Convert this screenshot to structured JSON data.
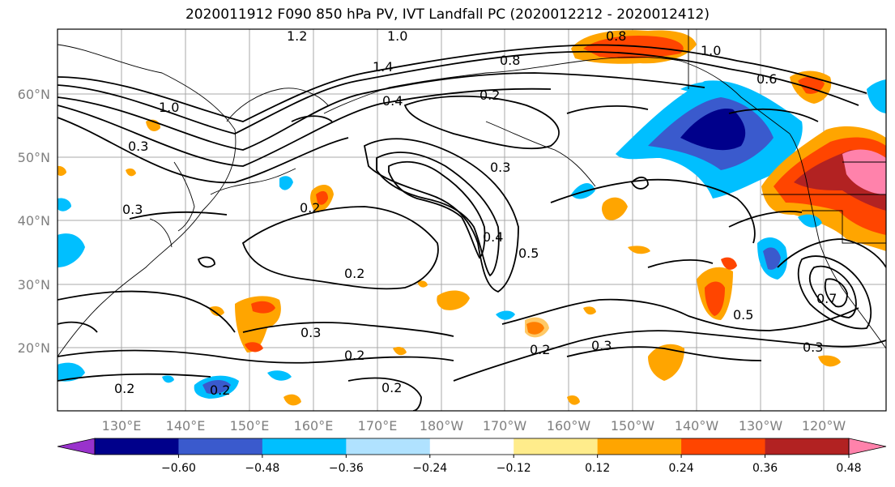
{
  "title": "2020011912 F090 850 hPa PV, IVT Landfall PC (2020012212 - 2020012412)",
  "lat_labels": [
    "60°N",
    "50°N",
    "40°N",
    "30°N",
    "20°N"
  ],
  "lon_labels": [
    "130°E",
    "140°E",
    "150°E",
    "160°E",
    "170°E",
    "180°W",
    "170°W",
    "160°W",
    "150°W",
    "140°W",
    "130°W",
    "120°W"
  ],
  "colorbar": {
    "ticks": [
      "−0.60",
      "−0.48",
      "−0.36",
      "−0.24",
      "−0.12",
      "0.12",
      "0.24",
      "0.36",
      "0.48",
      "0.60"
    ],
    "colors": [
      "#9932cc",
      "#00008b",
      "#3a5acd",
      "#00bfff",
      "#b0e2ff",
      "#ffffff",
      "#ffec8b",
      "#ffa500",
      "#ff4500",
      "#b22222",
      "#ff82ab"
    ]
  },
  "contour_labels": [
    {
      "text": "1.2"
    },
    {
      "text": "1.0"
    },
    {
      "text": "1.0"
    },
    {
      "text": "1.0"
    },
    {
      "text": "1.4"
    },
    {
      "text": "0.8"
    },
    {
      "text": "0.4"
    },
    {
      "text": "0.2"
    },
    {
      "text": "0.3"
    },
    {
      "text": "0.3"
    },
    {
      "text": "0.2"
    },
    {
      "text": "0.2"
    },
    {
      "text": "0.3"
    },
    {
      "text": "0.2"
    },
    {
      "text": "0.2"
    },
    {
      "text": "0.2"
    },
    {
      "text": "0.2"
    },
    {
      "text": "0.2"
    },
    {
      "text": "0.3"
    },
    {
      "text": "0.5"
    },
    {
      "text": "0.3"
    },
    {
      "text": "0.7"
    },
    {
      "text": "0.6"
    },
    {
      "text": "0.8"
    },
    {
      "text": "0.4"
    },
    {
      "text": "0.5"
    },
    {
      "text": "0.3"
    }
  ]
}
